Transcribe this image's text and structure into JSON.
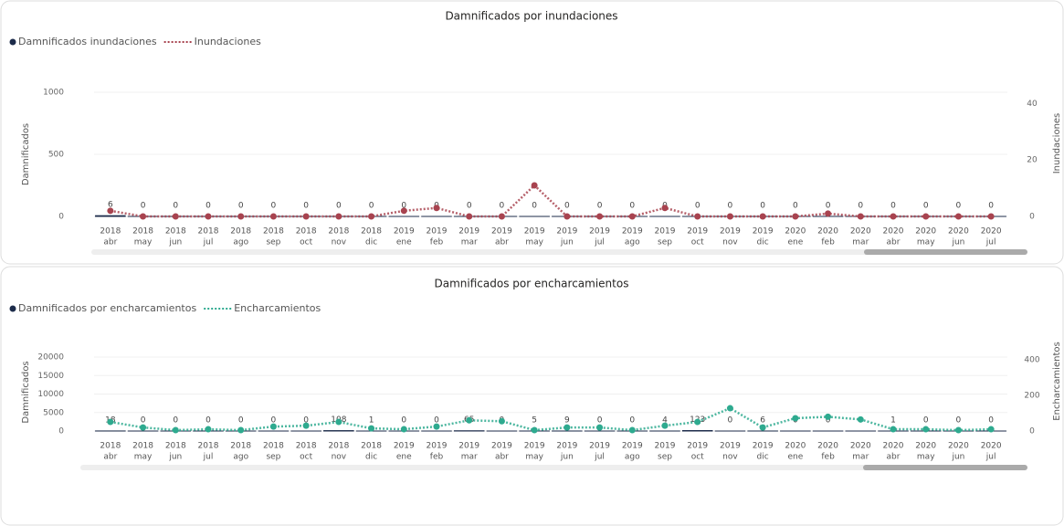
{
  "chart_data": [
    {
      "type": "combo",
      "title": "Damnificados por inundaciones",
      "categories": [
        [
          "2018",
          "abr"
        ],
        [
          "2018",
          "may"
        ],
        [
          "2018",
          "jun"
        ],
        [
          "2018",
          "jul"
        ],
        [
          "2018",
          "ago"
        ],
        [
          "2018",
          "sep"
        ],
        [
          "2018",
          "oct"
        ],
        [
          "2018",
          "nov"
        ],
        [
          "2018",
          "dic"
        ],
        [
          "2019",
          "ene"
        ],
        [
          "2019",
          "feb"
        ],
        [
          "2019",
          "mar"
        ],
        [
          "2019",
          "abr"
        ],
        [
          "2019",
          "may"
        ],
        [
          "2019",
          "jun"
        ],
        [
          "2019",
          "jul"
        ],
        [
          "2019",
          "ago"
        ],
        [
          "2019",
          "sep"
        ],
        [
          "2019",
          "oct"
        ],
        [
          "2019",
          "nov"
        ],
        [
          "2019",
          "dic"
        ],
        [
          "2020",
          "ene"
        ],
        [
          "2020",
          "feb"
        ],
        [
          "2020",
          "mar"
        ],
        [
          "2020",
          "abr"
        ],
        [
          "2020",
          "may"
        ],
        [
          "2020",
          "jun"
        ],
        [
          "2020",
          "jul"
        ]
      ],
      "y_label": "Damnificados",
      "y2_label": "Inundaciones",
      "ylim": [
        0,
        1000
      ],
      "yticks": [
        0,
        500,
        1000
      ],
      "y2lim": [
        0,
        44
      ],
      "y2ticks": [
        0,
        20,
        40
      ],
      "series": [
        {
          "name": "Damnificados inundaciones",
          "type": "bar",
          "color": "#1c2b4a",
          "values": [
            6,
            0,
            0,
            0,
            0,
            0,
            0,
            0,
            0,
            0,
            0,
            0,
            0,
            0,
            0,
            0,
            0,
            0,
            0,
            0,
            0,
            0,
            0,
            0,
            0,
            0,
            0,
            0
          ]
        },
        {
          "name": "Inundaciones",
          "type": "line",
          "axis": "y2",
          "color": "#a8434f",
          "values": [
            2,
            0,
            0,
            0,
            0,
            0,
            0,
            0,
            0,
            2,
            3,
            0,
            0,
            11,
            0,
            0,
            0,
            3,
            0,
            0,
            0,
            0,
            1,
            0,
            0,
            0,
            0,
            0
          ]
        }
      ]
    },
    {
      "type": "combo",
      "title": "Damnificados por encharcamientos",
      "categories": [
        [
          "2018",
          "abr"
        ],
        [
          "2018",
          "may"
        ],
        [
          "2018",
          "jun"
        ],
        [
          "2018",
          "jul"
        ],
        [
          "2018",
          "ago"
        ],
        [
          "2018",
          "sep"
        ],
        [
          "2018",
          "oct"
        ],
        [
          "2018",
          "nov"
        ],
        [
          "2018",
          "dic"
        ],
        [
          "2019",
          "ene"
        ],
        [
          "2019",
          "feb"
        ],
        [
          "2019",
          "mar"
        ],
        [
          "2019",
          "abr"
        ],
        [
          "2019",
          "may"
        ],
        [
          "2019",
          "jun"
        ],
        [
          "2019",
          "jul"
        ],
        [
          "2019",
          "ago"
        ],
        [
          "2019",
          "sep"
        ],
        [
          "2019",
          "oct"
        ],
        [
          "2019",
          "nov"
        ],
        [
          "2019",
          "dic"
        ],
        [
          "2020",
          "ene"
        ],
        [
          "2020",
          "feb"
        ],
        [
          "2020",
          "mar"
        ],
        [
          "2020",
          "abr"
        ],
        [
          "2020",
          "may"
        ],
        [
          "2020",
          "jun"
        ],
        [
          "2020",
          "jul"
        ]
      ],
      "y_label": "Damnificados",
      "y2_label": "Encharcamientos",
      "ylim": [
        0,
        21000
      ],
      "yticks": [
        0,
        5000,
        10000,
        15000,
        20000
      ],
      "y2lim": [
        0,
        436
      ],
      "y2ticks": [
        0,
        200,
        400
      ],
      "series": [
        {
          "name": "Damnificados por encharcamientos",
          "type": "bar",
          "color": "#1c2b4a",
          "values": [
            18,
            0,
            0,
            0,
            0,
            0,
            0,
            108,
            1,
            0,
            0,
            65,
            0,
            5,
            9,
            0,
            0,
            4,
            123,
            0,
            6,
            0,
            0,
            0,
            1,
            0,
            0,
            0
          ]
        },
        {
          "name": "Encharcamientos",
          "type": "line",
          "axis": "y2",
          "color": "#2eaa8f",
          "values": [
            51,
            20,
            5,
            10,
            5,
            25,
            30,
            51,
            15,
            10,
            25,
            60,
            55,
            5,
            20,
            20,
            5,
            30,
            51,
            128,
            20,
            72,
            80,
            65,
            10,
            10,
            5,
            10
          ]
        }
      ]
    }
  ]
}
